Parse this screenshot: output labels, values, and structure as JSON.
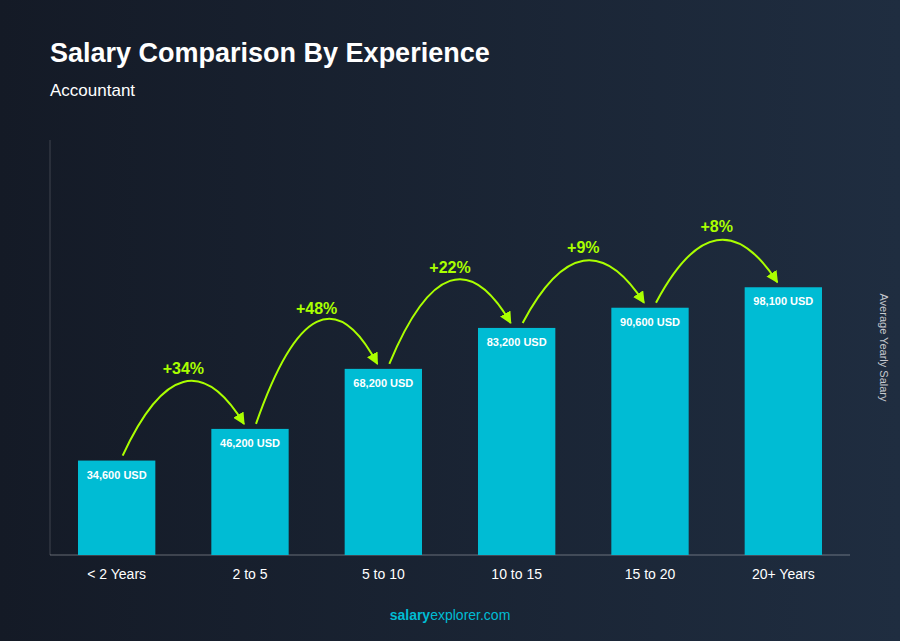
{
  "chart_data": {
    "type": "bar",
    "title": "Salary Comparison By Experience",
    "subtitle": "Accountant",
    "ylabel": "Average Yearly Salary",
    "categories": [
      "< 2 Years",
      "2 to 5",
      "5 to 10",
      "10 to 15",
      "15 to 20",
      "20+ Years"
    ],
    "values": [
      34600,
      46200,
      68200,
      83200,
      90600,
      98100
    ],
    "value_labels": [
      "34,600 USD",
      "46,200 USD",
      "68,200 USD",
      "83,200 USD",
      "90,600 USD",
      "98,100 USD"
    ],
    "data_labels": true,
    "color": "#00bcd4",
    "annotations": [
      {
        "text": "+34%",
        "color": "#aaff00"
      },
      {
        "text": "+48%",
        "color": "#aaff00"
      },
      {
        "text": "+22%",
        "color": "#aaff00"
      },
      {
        "text": "+9%",
        "color": "#aaff00"
      },
      {
        "text": "+8%",
        "color": "#aaff00"
      }
    ],
    "footer": [
      "salary",
      "explorer.com"
    ],
    "ylim": [
      0,
      152055
    ],
    "yticks": [],
    "tick_labels": "x",
    "grid": false
  }
}
